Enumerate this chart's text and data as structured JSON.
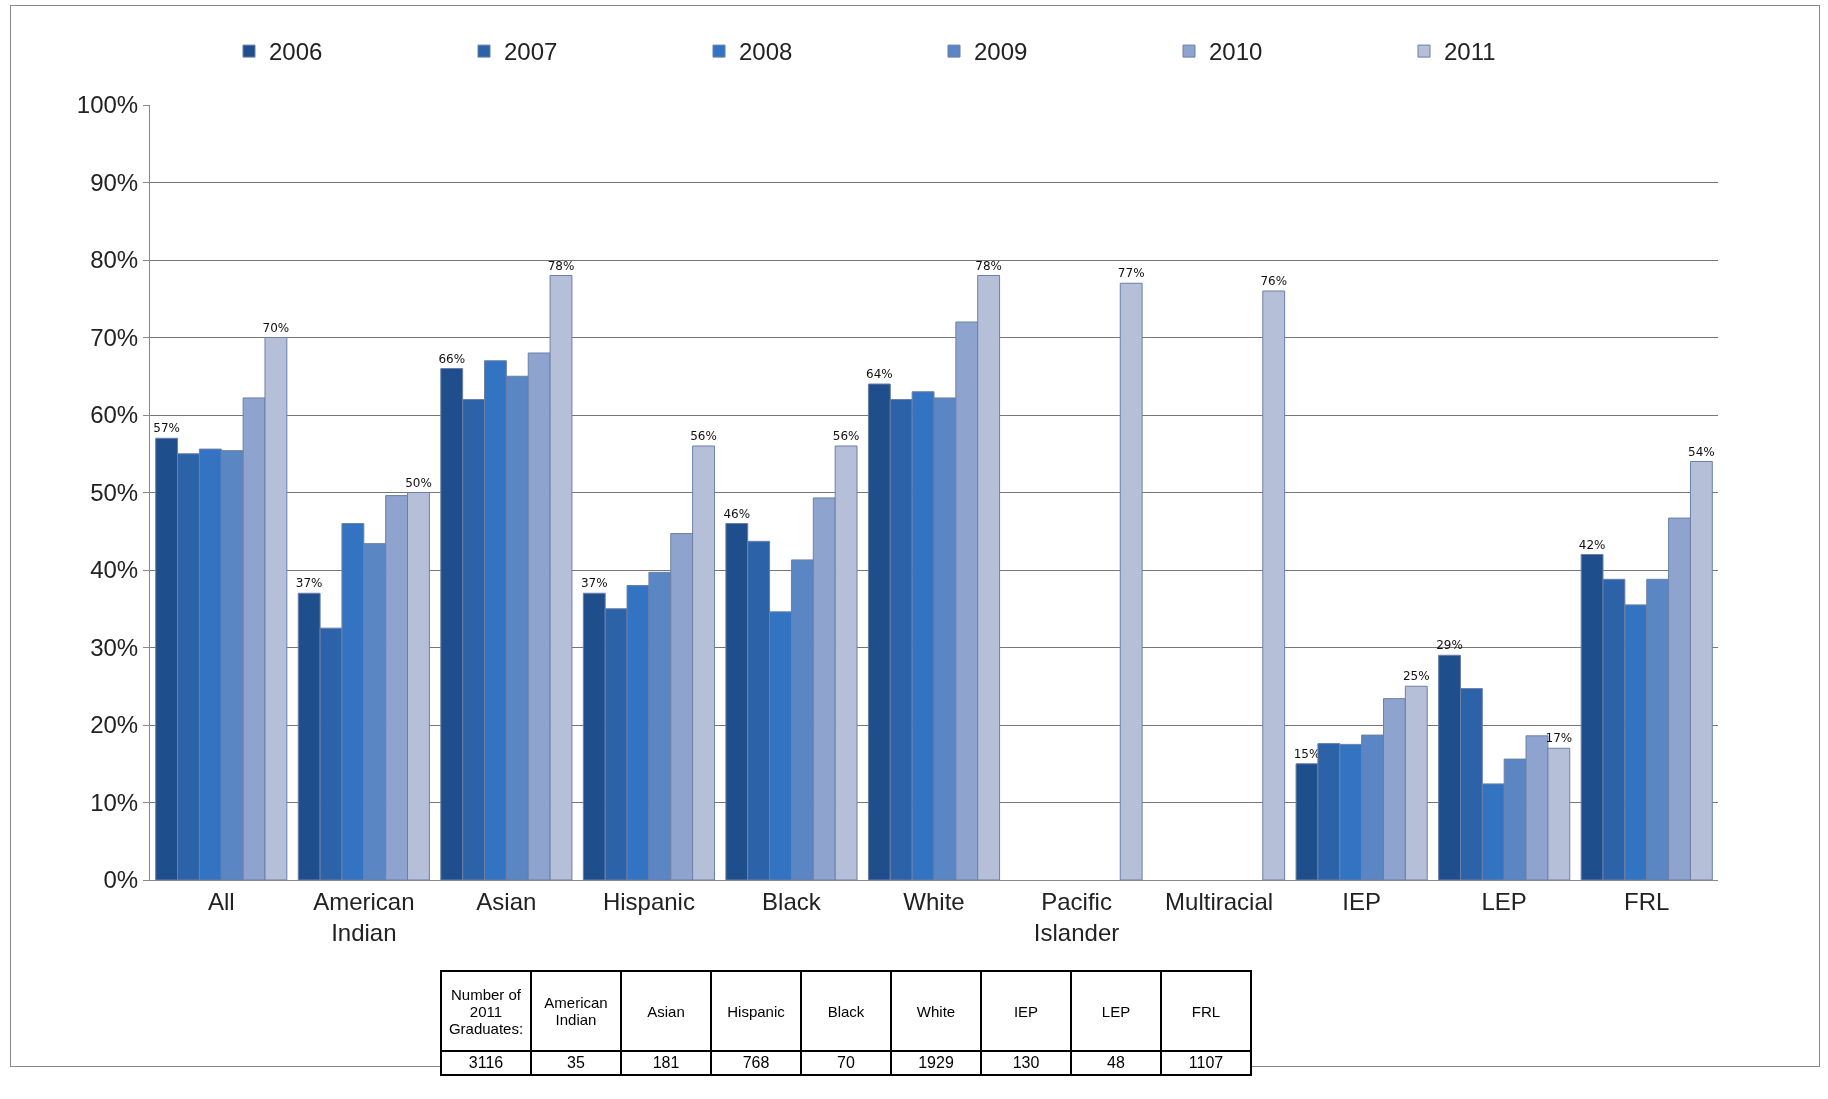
{
  "chart_data": {
    "type": "bar",
    "categories": [
      "All",
      "American Indian",
      "Asian",
      "Hispanic",
      "Black",
      "White",
      "Pacific Islander",
      "Multiracial",
      "IEP",
      "LEP",
      "FRL"
    ],
    "series": [
      {
        "name": "2006",
        "color": "#1f4e8c",
        "values": [
          57,
          37,
          66,
          37,
          46,
          64,
          null,
          null,
          15,
          29,
          42
        ],
        "value_labels": [
          "57%",
          "37%",
          "66%",
          "37%",
          "46%",
          "64%",
          null,
          null,
          "15%",
          "29%",
          "42%"
        ]
      },
      {
        "name": "2007",
        "color": "#2c62a8",
        "values": [
          55,
          32.5,
          62,
          35,
          43.7,
          62,
          null,
          null,
          17.6,
          24.7,
          38.8
        ]
      },
      {
        "name": "2008",
        "color": "#3274c2",
        "values": [
          55.6,
          46,
          67,
          38,
          34.6,
          63,
          null,
          null,
          17.5,
          12.4,
          35.5
        ]
      },
      {
        "name": "2009",
        "color": "#5a86c4",
        "values": [
          55.4,
          43.4,
          65,
          39.7,
          41.3,
          62.2,
          null,
          null,
          18.7,
          15.6,
          38.8
        ]
      },
      {
        "name": "2010",
        "color": "#8ea4cf",
        "values": [
          62.2,
          49.6,
          68,
          44.7,
          49.3,
          72,
          null,
          null,
          23.4,
          18.6,
          46.7
        ]
      },
      {
        "name": "2011",
        "color": "#b5c0d8",
        "values": [
          70,
          50,
          78,
          56,
          56,
          78,
          77,
          76,
          25,
          17,
          54
        ],
        "value_labels": [
          "70%",
          "50%",
          "78%",
          "56%",
          "56%",
          "78%",
          "77%",
          "76%",
          "25%",
          "17%",
          "54%"
        ]
      }
    ],
    "ylim": [
      0,
      100
    ],
    "yticks": [
      {
        "value": 0,
        "label": "0%"
      },
      {
        "value": 10,
        "label": "10%"
      },
      {
        "value": 20,
        "label": "20%"
      },
      {
        "value": 30,
        "label": "30%"
      },
      {
        "value": 40,
        "label": "40%"
      },
      {
        "value": 50,
        "label": "50%"
      },
      {
        "value": 60,
        "label": "60%"
      },
      {
        "value": 70,
        "label": "70%"
      },
      {
        "value": 80,
        "label": "80%"
      },
      {
        "value": 90,
        "label": "90%"
      },
      {
        "value": 100,
        "label": "100%"
      }
    ],
    "grid": "y",
    "legend": "top",
    "annotations": [
      "Number of 2011 Graduates:",
      "American Indian",
      "Asian",
      "Hispanic",
      "Black",
      "White",
      "IEP",
      "LEP",
      "FRL",
      "3116",
      "35",
      "181",
      "768",
      "70",
      "1929",
      "130",
      "48",
      "1107"
    ]
  }
}
